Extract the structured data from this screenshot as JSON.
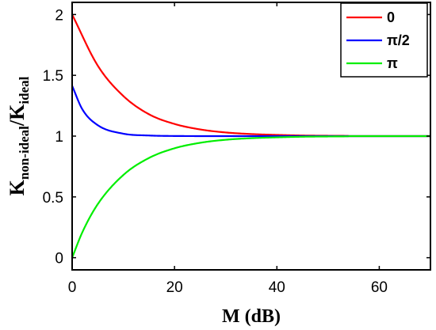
{
  "chart_data": {
    "type": "line",
    "xlabel": "M (dB)",
    "ylabel": {
      "base1": "K",
      "sub1": "non-ideal",
      "slash": "/",
      "base2": "K",
      "sub2": "ideal"
    },
    "xlim": [
      0,
      70
    ],
    "ylim": [
      -0.1,
      2.1
    ],
    "xticks": [
      0,
      20,
      40,
      60
    ],
    "yticks": [
      0,
      0.5,
      1,
      1.5,
      2
    ],
    "ytick_labels": [
      "0",
      "0.5",
      "1",
      "1.5",
      "2"
    ],
    "grid": false,
    "legend_position": "top-right",
    "x_end": 54,
    "series": [
      {
        "name": "0",
        "color": "#ff0000",
        "x": [
          0,
          5,
          10,
          15,
          20,
          25,
          30,
          35,
          40,
          45,
          50,
          54
        ],
        "y": [
          2.0,
          1.58,
          1.33,
          1.18,
          1.1,
          1.055,
          1.03,
          1.017,
          1.01,
          1.005,
          1.003,
          1.002
        ]
      },
      {
        "name": "π/2",
        "color": "#0000ff",
        "x": [
          0,
          2,
          5,
          10,
          15,
          20,
          30,
          40,
          54
        ],
        "y": [
          1.414,
          1.22,
          1.09,
          1.02,
          1.005,
          1.001,
          1.0,
          1.0,
          1.0
        ]
      },
      {
        "name": "π",
        "color": "#00ee00",
        "x": [
          0,
          2,
          5,
          10,
          15,
          20,
          25,
          30,
          35,
          40,
          45,
          50,
          54
        ],
        "y": [
          0.0,
          0.21,
          0.44,
          0.68,
          0.82,
          0.9,
          0.945,
          0.97,
          0.983,
          0.99,
          0.995,
          0.997,
          0.998
        ]
      }
    ]
  }
}
